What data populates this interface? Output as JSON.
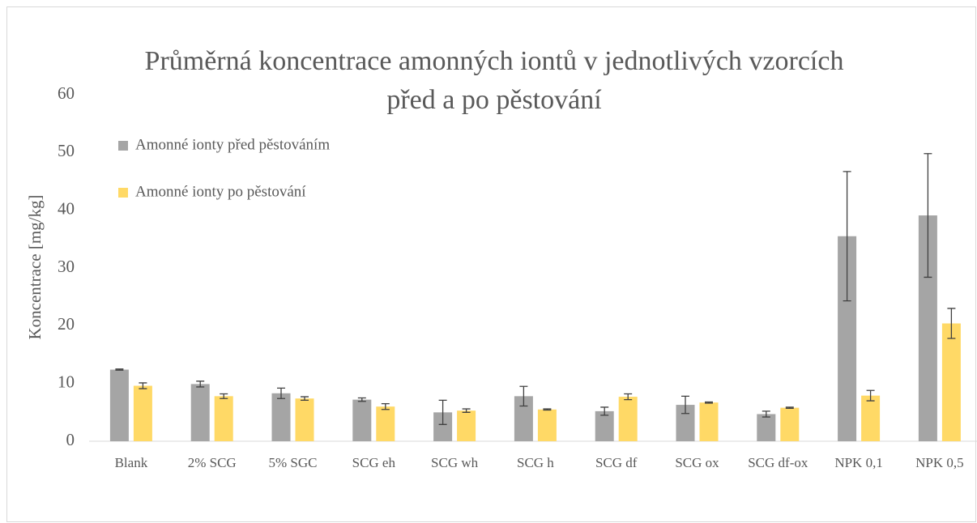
{
  "chart_data": {
    "type": "bar",
    "title": [
      "Průměrná koncentrace amonných iontů v jednotlivých vzorcích",
      "před a po pěstování"
    ],
    "y_label": "Koncentrace [mg/kg]",
    "categories": [
      "Blank",
      "2% SCG",
      "5% SGC",
      "SCG eh",
      "SCG wh",
      "SCG h",
      "SCG df",
      "SCG ox",
      "SCG df-ox",
      "NPK 0,1",
      "NPK 0,5"
    ],
    "series": [
      {
        "name": "Amonné ionty před pěstováním",
        "color": "#a5a5a5",
        "values": [
          12.4,
          9.9,
          8.3,
          7.2,
          5.0,
          7.8,
          5.2,
          6.3,
          4.7,
          35.5,
          39.1
        ],
        "errors": [
          0.1,
          0.5,
          0.9,
          0.3,
          2.1,
          1.7,
          0.7,
          1.5,
          0.5,
          11.2,
          10.7
        ]
      },
      {
        "name": "Amonné ionty po pěstování",
        "color": "#ffd966",
        "values": [
          9.6,
          7.8,
          7.4,
          6.0,
          5.3,
          5.5,
          7.7,
          6.7,
          5.8,
          7.9,
          20.4
        ],
        "errors": [
          0.5,
          0.4,
          0.3,
          0.5,
          0.3,
          0.1,
          0.5,
          0.1,
          0.1,
          0.9,
          2.6
        ]
      }
    ],
    "ylim": [
      0,
      60
    ],
    "yticks": [
      0,
      10,
      20,
      30,
      40,
      50,
      60
    ],
    "grid": false,
    "legend": "top-left"
  }
}
